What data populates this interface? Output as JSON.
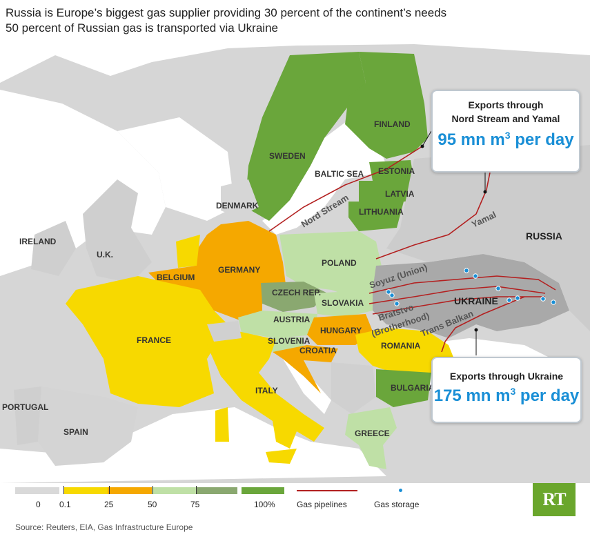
{
  "header": {
    "line1": "Russia is Europe’s biggest gas supplier providing 30 percent of the continent’s needs",
    "line2": "50 percent of Russian gas is transported via Ukraine"
  },
  "countries": {
    "sweden": "SWEDEN",
    "finland": "FINLAND",
    "estonia": "ESTONIA",
    "latvia": "LATVIA",
    "lithuania": "LITHUANIA",
    "baltic_sea": "BALTIC SEA",
    "denmark": "DENMARK",
    "ireland": "IRELAND",
    "uk": "U.K.",
    "russia": "RUSSIA",
    "poland": "POLAND",
    "germany": "GERMANY",
    "belgium": "BELGIUM",
    "czech": "CZECH REP.",
    "slovakia": "SLOVAKIA",
    "ukraine": "UKRAINE",
    "austria": "AUSTRIA",
    "hungary": "HUNGARY",
    "france": "FRANCE",
    "slovenia": "SLOVENIA",
    "croatia": "CROATIA",
    "romania": "ROMANIA",
    "bulgaria": "BULGARIA",
    "italy": "ITALY",
    "portugal": "PORTUGAL",
    "spain": "SPAIN",
    "greece": "GREECE"
  },
  "pipelines": {
    "nord_stream": "Nord Stream",
    "yamal": "Yamal",
    "soyuz": "Soyuz (Union)",
    "bratstvo1": "Bratstvo",
    "bratstvo2": "(Brotherhood)",
    "trans_balkan": "Trans Balkan"
  },
  "callout_north": {
    "title1": "Exports through",
    "title2": "Nord Stream and Yamal",
    "value": "95 mn m",
    "sup": "3",
    "unit": " per day"
  },
  "callout_ukraine": {
    "title": "Exports through Ukraine",
    "value": "175 mn m",
    "sup": "3",
    "unit": " per day"
  },
  "legend": {
    "labels": [
      "0",
      "0.1",
      "25",
      "50",
      "75",
      "100%"
    ],
    "pipelines": "Gas pipelines",
    "storage": "Gas storage",
    "colors": [
      "#d9d9d9",
      "#f7d900",
      "#f5a800",
      "#bfe0a6",
      "#8aa870",
      "#6aa63b"
    ]
  },
  "source": "Source: Reuters, EIA, Gas Infrastructure Europe",
  "logo": "RT",
  "colors": {
    "yellow": "#f7d900",
    "orange": "#f5a800",
    "lightgreen": "#bfe0a6",
    "olive": "#8aa870",
    "green": "#6aa63b",
    "gray": "#cfcfcf",
    "pipeline": "#b32020",
    "storage": "#1a8fd6"
  }
}
